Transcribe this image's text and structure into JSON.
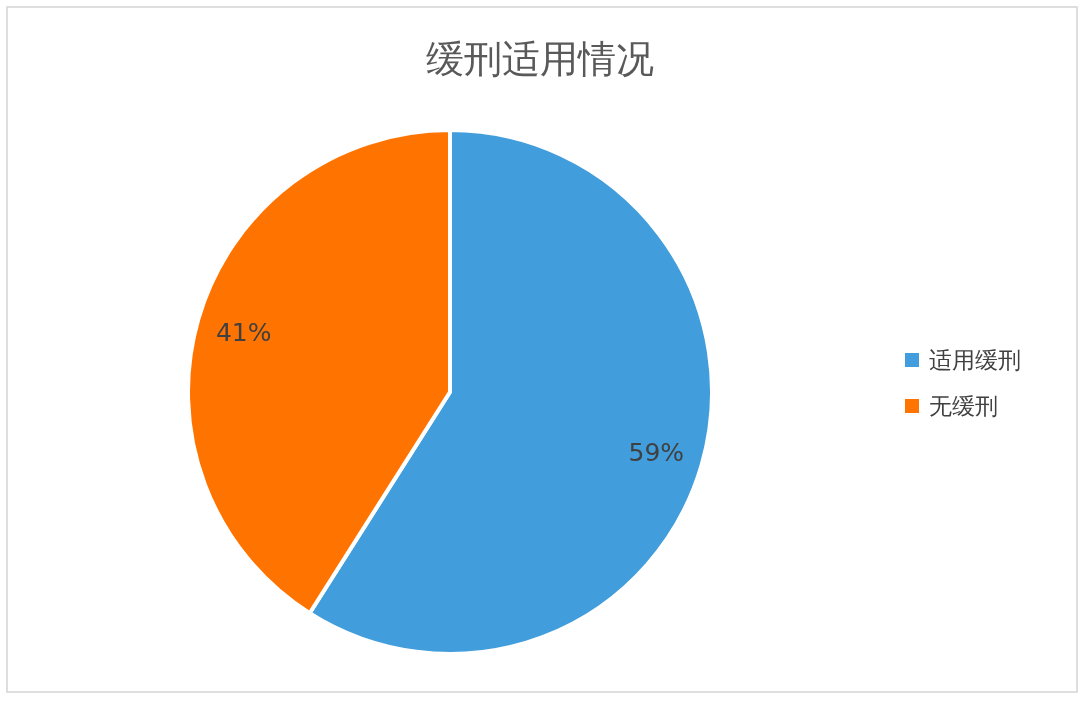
{
  "chart_data": {
    "type": "pie",
    "title": "缓刑适用情况",
    "categories": [
      "适用缓刑",
      "无缓刑"
    ],
    "values": [
      59,
      41
    ],
    "colors": [
      "#419ddb",
      "#ff7400"
    ],
    "value_labels": [
      "59%",
      "41%"
    ],
    "legend": "right"
  }
}
